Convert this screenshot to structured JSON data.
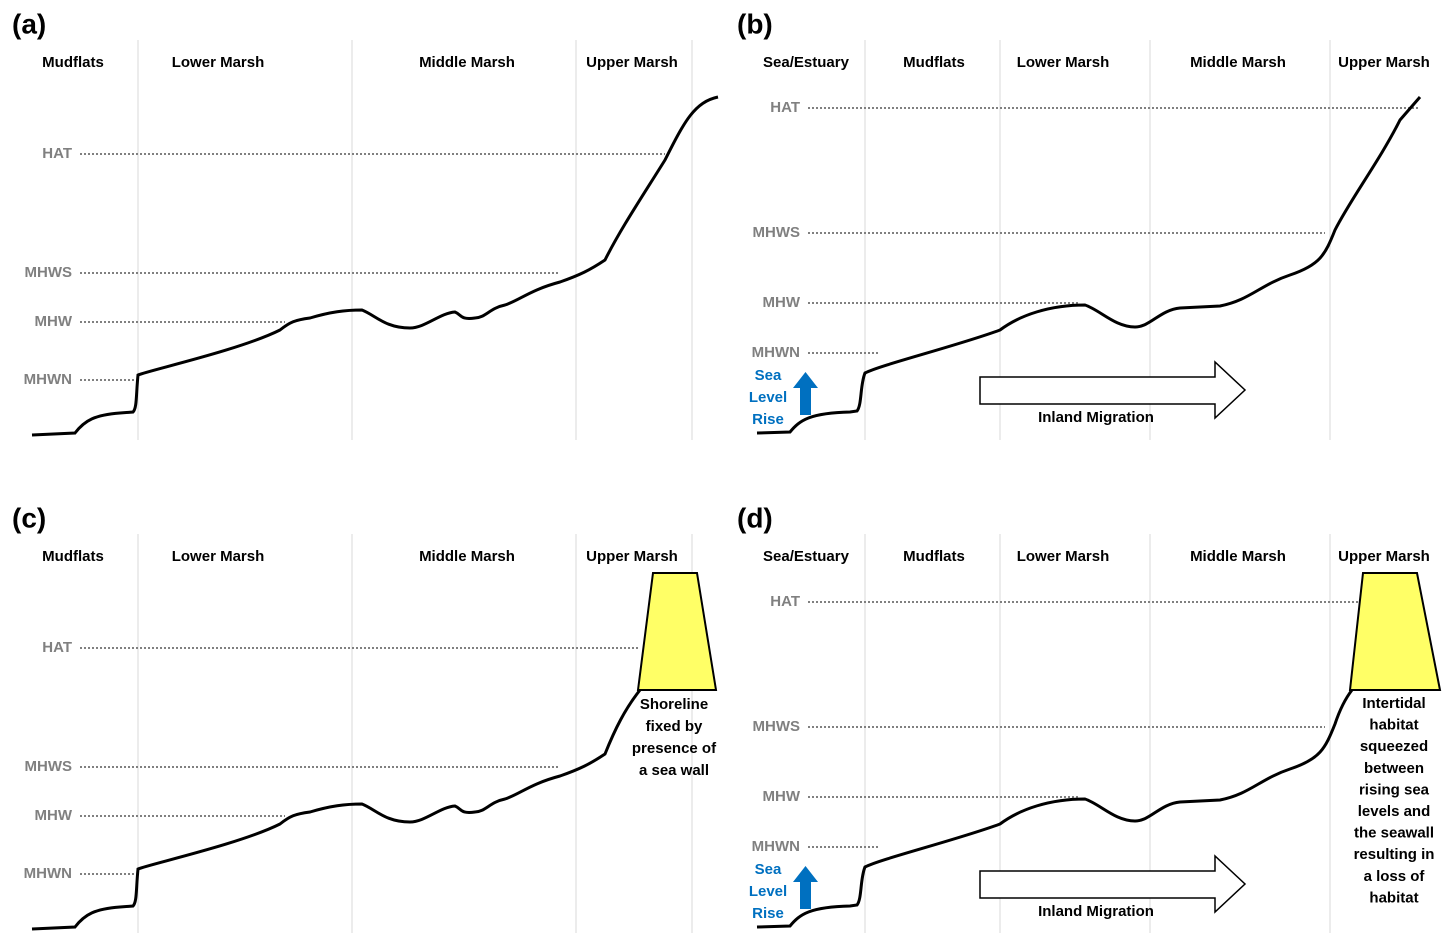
{
  "panels": [
    {
      "label": "(a)",
      "zones": [
        "Mudflats",
        "Lower Marsh",
        "Middle Marsh",
        "Upper Marsh"
      ],
      "levels": [
        "HAT",
        "MHWS",
        "MHW",
        "MHWN"
      ]
    },
    {
      "label": "(b)",
      "zones": [
        "Sea/Estuary",
        "Mudflats",
        "Lower Marsh",
        "Middle Marsh",
        "Upper Marsh"
      ],
      "levels": [
        "HAT",
        "MHWS",
        "MHW",
        "MHWN"
      ],
      "sea_level_rise": [
        "Sea",
        "Level",
        "Rise"
      ],
      "migration": "Inland Migration"
    },
    {
      "label": "(c)",
      "zones": [
        "Mudflats",
        "Lower Marsh",
        "Middle Marsh",
        "Upper Marsh"
      ],
      "levels": [
        "HAT",
        "MHWS",
        "MHW",
        "MHWN"
      ],
      "note": [
        "Shoreline",
        "fixed by",
        "presence of",
        "a sea wall"
      ]
    },
    {
      "label": "(d)",
      "zones": [
        "Sea/Estuary",
        "Mudflats",
        "Lower Marsh",
        "Middle Marsh",
        "Upper Marsh"
      ],
      "levels": [
        "HAT",
        "MHWS",
        "MHW",
        "MHWN"
      ],
      "sea_level_rise": [
        "Sea",
        "Level",
        "Rise"
      ],
      "migration": "Inland Migration",
      "note": [
        "Intertidal",
        "habitat",
        "squeezed",
        "between",
        "rising sea",
        "levels and",
        "the seawall",
        "resulting in",
        "a loss of",
        "habitat"
      ]
    }
  ]
}
